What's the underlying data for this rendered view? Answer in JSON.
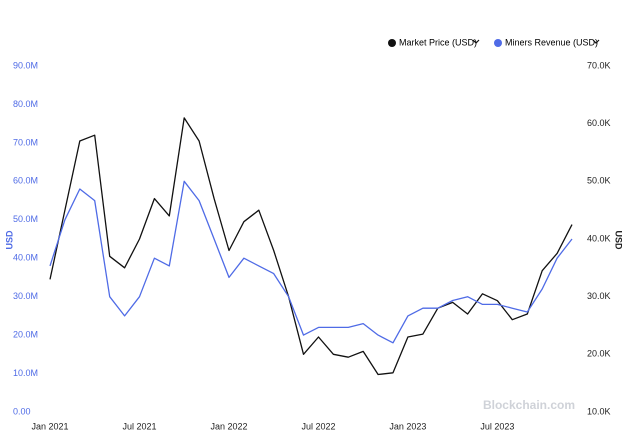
{
  "chart_data": {
    "type": "line",
    "x": [
      "2021-01",
      "2021-02",
      "2021-03",
      "2021-04",
      "2021-05",
      "2021-06",
      "2021-07",
      "2021-08",
      "2021-09",
      "2021-10",
      "2021-11",
      "2021-12",
      "2022-01",
      "2022-02",
      "2022-03",
      "2022-04",
      "2022-05",
      "2022-06",
      "2022-07",
      "2022-08",
      "2022-09",
      "2022-10",
      "2022-11",
      "2022-12",
      "2023-01",
      "2023-02",
      "2023-03",
      "2023-04",
      "2023-05",
      "2023-06",
      "2023-07",
      "2023-08",
      "2023-09",
      "2023-10",
      "2023-11",
      "2023-12"
    ],
    "series": [
      {
        "name": "Market Price (USD)",
        "color": "#111111",
        "axis": "y2",
        "values": [
          33000,
          45000,
          57000,
          58000,
          37000,
          35000,
          40000,
          47000,
          44000,
          61000,
          57000,
          47000,
          38000,
          43000,
          45000,
          38000,
          30000,
          20000,
          23000,
          20000,
          19500,
          20500,
          16500,
          16800,
          23000,
          23500,
          28000,
          29000,
          27000,
          30500,
          29300,
          26000,
          27000,
          34500,
          37500,
          42500
        ]
      },
      {
        "name": "Miners Revenue (USD)",
        "color": "#4f6be6",
        "values": [
          38000000,
          50000000,
          58000000,
          55000000,
          30000000,
          25000000,
          30000000,
          40000000,
          38000000,
          60000000,
          55000000,
          45000000,
          35000000,
          40000000,
          38000000,
          36000000,
          30000000,
          20000000,
          22000000,
          22000000,
          22000000,
          23000000,
          20000000,
          18000000,
          25000000,
          27000000,
          27000000,
          29000000,
          30000000,
          28000000,
          28000000,
          27000000,
          26000000,
          32000000,
          40000000,
          45000000
        ]
      }
    ],
    "xticks": [
      {
        "value": "2021-01",
        "label": "Jan 2021"
      },
      {
        "value": "2021-07",
        "label": "Jul 2021"
      },
      {
        "value": "2022-01",
        "label": "Jan 2022"
      },
      {
        "value": "2022-07",
        "label": "Jul 2022"
      },
      {
        "value": "2023-01",
        "label": "Jan 2023"
      },
      {
        "value": "2023-07",
        "label": "Jul 2023"
      }
    ],
    "ylabel": "USD",
    "y2label": "USD",
    "ylim": [
      0,
      90000000
    ],
    "yticks": [
      {
        "value": 0,
        "label": "0.00"
      },
      {
        "value": 10000000,
        "label": "10.0M"
      },
      {
        "value": 20000000,
        "label": "20.0M"
      },
      {
        "value": 30000000,
        "label": "30.0M"
      },
      {
        "value": 40000000,
        "label": "40.0M"
      },
      {
        "value": 50000000,
        "label": "50.0M"
      },
      {
        "value": 60000000,
        "label": "60.0M"
      },
      {
        "value": 70000000,
        "label": "70.0M"
      },
      {
        "value": 80000000,
        "label": "80.0M"
      },
      {
        "value": 90000000,
        "label": "90.0M"
      }
    ],
    "y2lim": [
      10000,
      70000
    ],
    "y2ticks": [
      {
        "value": 10000,
        "label": "10.0K"
      },
      {
        "value": 20000,
        "label": "20.0K"
      },
      {
        "value": 30000,
        "label": "30.0K"
      },
      {
        "value": 40000,
        "label": "40.0K"
      },
      {
        "value": 50000,
        "label": "50.0K"
      },
      {
        "value": 60000,
        "label": "60.0K"
      },
      {
        "value": 70000,
        "label": "70.0K"
      }
    ],
    "watermark": "Blockchain.com"
  }
}
